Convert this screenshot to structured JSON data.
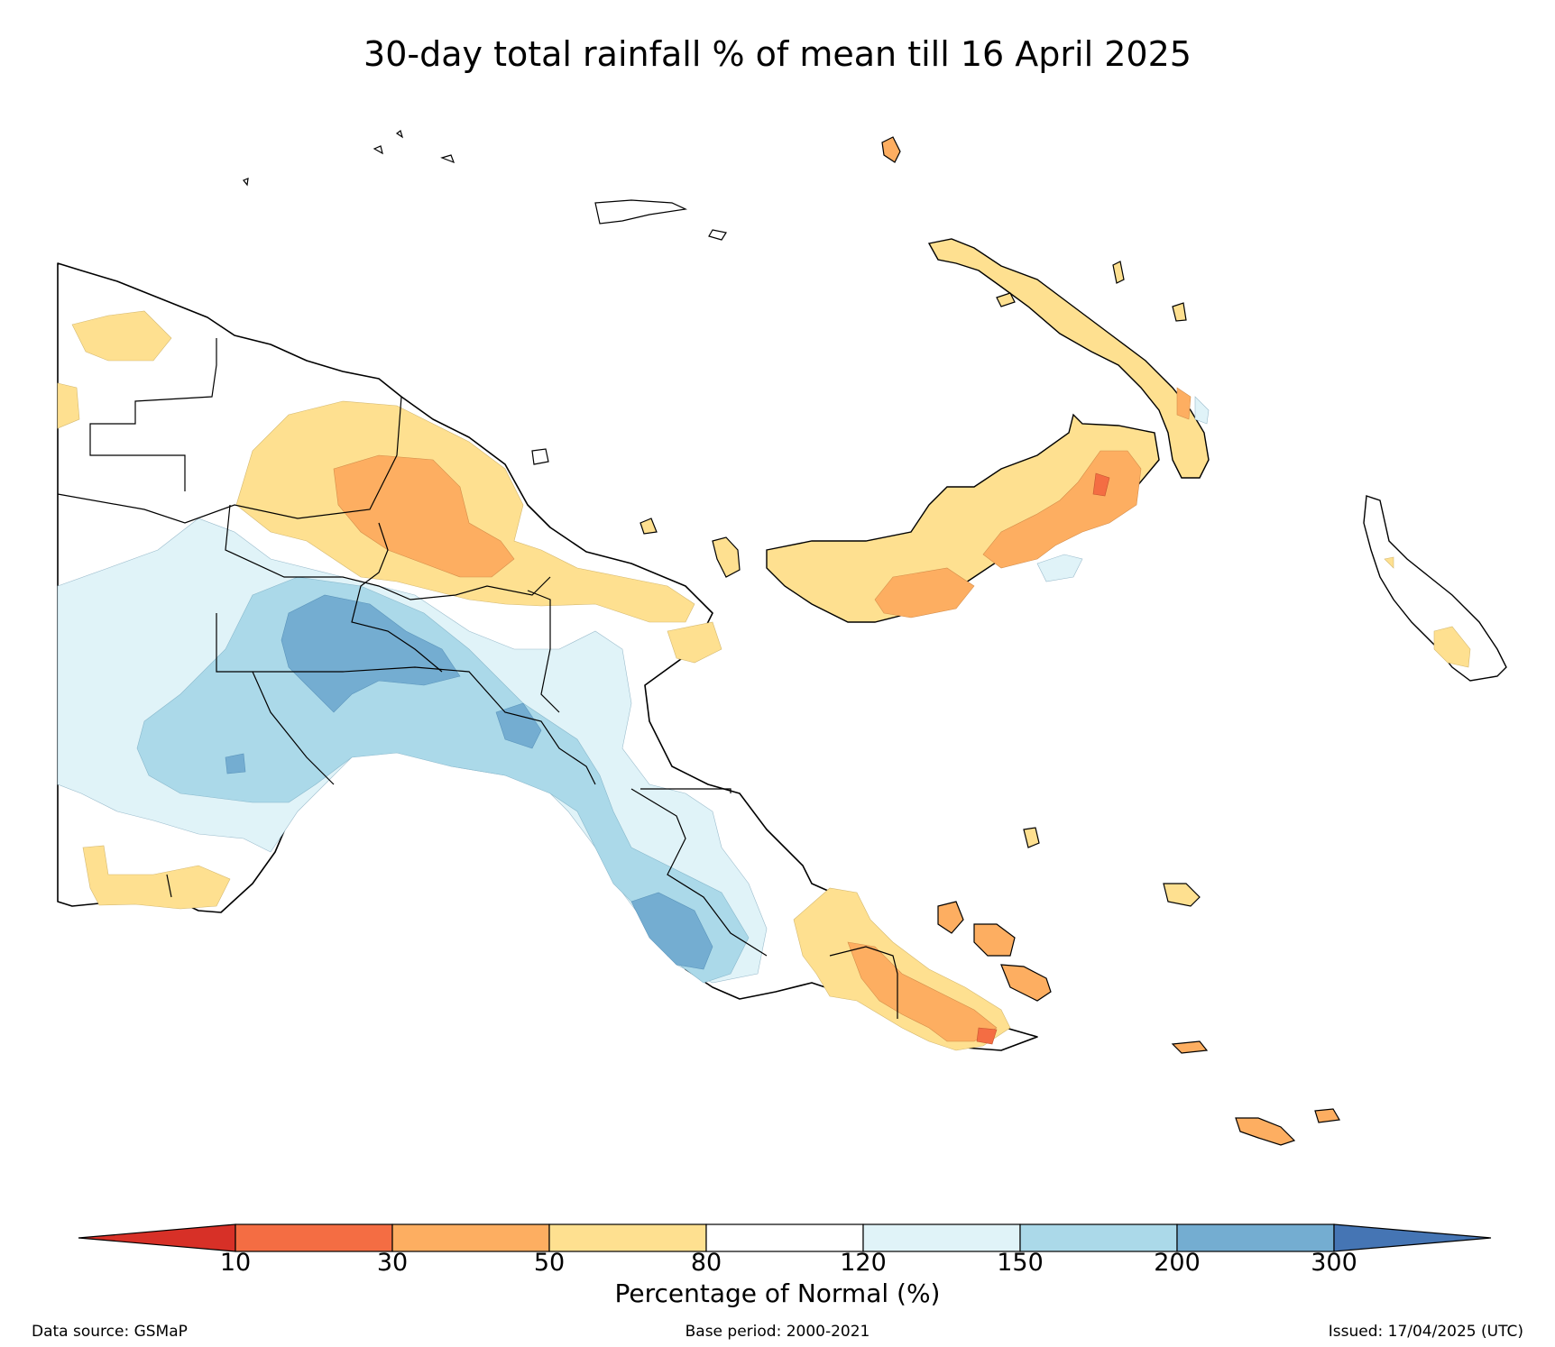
{
  "title": "30-day total rainfall % of mean till 16 April 2025",
  "legend": {
    "title": "Percentage of Normal (%)",
    "ticks": [
      "10",
      "30",
      "50",
      "80",
      "120",
      "150",
      "200",
      "300"
    ],
    "bins": [
      {
        "range": "<10",
        "color": "#d73027"
      },
      {
        "range": "10-30",
        "color": "#f46d43"
      },
      {
        "range": "30-50",
        "color": "#fdae61"
      },
      {
        "range": "50-80",
        "color": "#fee090"
      },
      {
        "range": "80-120",
        "color": "#ffffff"
      },
      {
        "range": "120-150",
        "color": "#e0f3f8"
      },
      {
        "range": "150-200",
        "color": "#abd9e9"
      },
      {
        "range": "200-300",
        "color": "#74add1"
      },
      {
        "range": ">300",
        "color": "#4575b4"
      }
    ]
  },
  "footer": {
    "source": "Data source: GSMaP",
    "base_period": "Base period: 2000-2021",
    "issued": "Issued: 17/04/2025 (UTC)"
  }
}
